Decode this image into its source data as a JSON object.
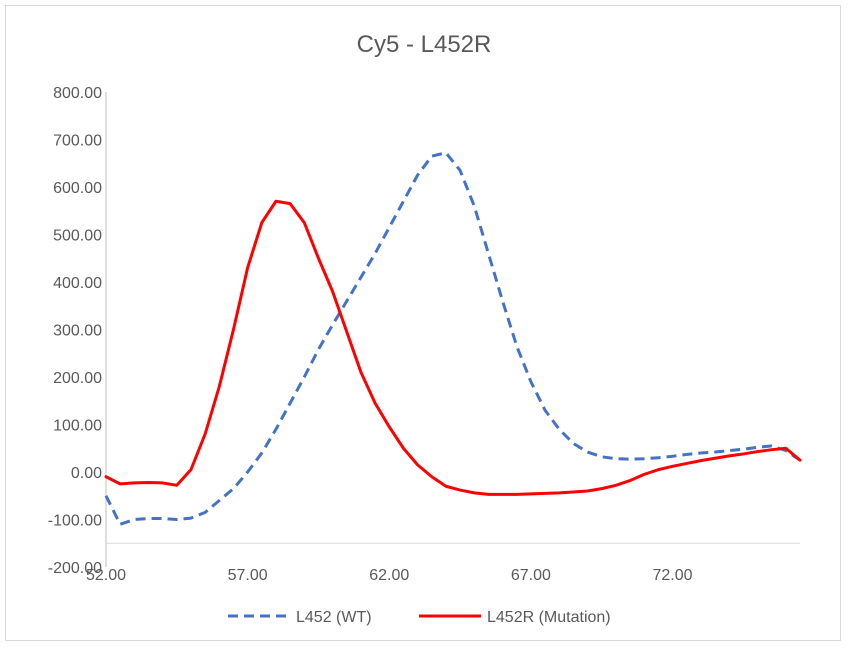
{
  "chart_data": {
    "type": "line",
    "title": "Cy5 - L452R",
    "xlabel": "",
    "ylabel": "",
    "xlim": [
      52,
      76.5
    ],
    "ylim": [
      -200,
      800
    ],
    "x_ticks": [
      "52.00",
      "57.00",
      "62.00",
      "67.00",
      "72.00"
    ],
    "y_ticks": [
      "800.00",
      "700.00",
      "600.00",
      "500.00",
      "400.00",
      "300.00",
      "200.00",
      "100.00",
      "0.00",
      "-100.00",
      "-200.00"
    ],
    "x_tick_values": [
      52,
      57,
      62,
      67,
      72
    ],
    "y_tick_values": [
      800,
      700,
      600,
      500,
      400,
      300,
      200,
      100,
      0,
      -100,
      -200
    ],
    "grid": false,
    "legend_position": "bottom",
    "series": [
      {
        "name": "L452 (WT)",
        "color": "#4472c4",
        "dash": "dashed",
        "x": [
          52.0,
          52.5,
          53.0,
          53.5,
          54.0,
          54.5,
          55.0,
          55.5,
          56.0,
          56.5,
          57.0,
          57.5,
          58.0,
          58.5,
          59.0,
          59.5,
          60.0,
          60.5,
          61.0,
          61.5,
          62.0,
          62.5,
          63.0,
          63.5,
          64.0,
          64.5,
          65.0,
          65.5,
          66.0,
          66.5,
          67.0,
          67.5,
          68.0,
          68.5,
          69.0,
          69.5,
          70.0,
          70.5,
          71.0,
          71.5,
          72.0,
          72.5,
          73.0,
          73.5,
          74.0,
          74.5,
          75.0,
          75.5,
          76.0,
          76.5
        ],
        "y": [
          -50,
          -110,
          -100,
          -98,
          -98,
          -100,
          -97,
          -85,
          -60,
          -35,
          0,
          40,
          90,
          145,
          200,
          258,
          310,
          360,
          410,
          460,
          515,
          570,
          625,
          665,
          672,
          635,
          560,
          460,
          360,
          265,
          190,
          130,
          90,
          60,
          42,
          32,
          28,
          27,
          28,
          30,
          33,
          37,
          40,
          42,
          45,
          48,
          52,
          55,
          45,
          25
        ]
      },
      {
        "name": "L452R (Mutation)",
        "color": "#ff0000",
        "dash": "solid",
        "x": [
          52.0,
          52.5,
          53.0,
          53.5,
          54.0,
          54.5,
          55.0,
          55.5,
          56.0,
          56.5,
          57.0,
          57.5,
          58.0,
          58.5,
          59.0,
          59.5,
          60.0,
          60.5,
          61.0,
          61.5,
          62.0,
          62.5,
          63.0,
          63.5,
          64.0,
          64.5,
          65.0,
          65.5,
          66.0,
          66.5,
          67.0,
          67.5,
          68.0,
          68.5,
          69.0,
          69.5,
          70.0,
          70.5,
          71.0,
          71.5,
          72.0,
          72.5,
          73.0,
          73.5,
          74.0,
          74.5,
          75.0,
          75.5,
          76.0,
          76.5
        ],
        "y": [
          -10,
          -25,
          -23,
          -22,
          -23,
          -28,
          5,
          80,
          180,
          300,
          430,
          525,
          570,
          565,
          525,
          450,
          380,
          295,
          210,
          145,
          95,
          50,
          15,
          -10,
          -30,
          -38,
          -44,
          -47,
          -47,
          -47,
          -46,
          -45,
          -44,
          -42,
          -40,
          -35,
          -28,
          -18,
          -5,
          5,
          12,
          18,
          24,
          29,
          34,
          38,
          43,
          47,
          50,
          25
        ]
      }
    ]
  }
}
